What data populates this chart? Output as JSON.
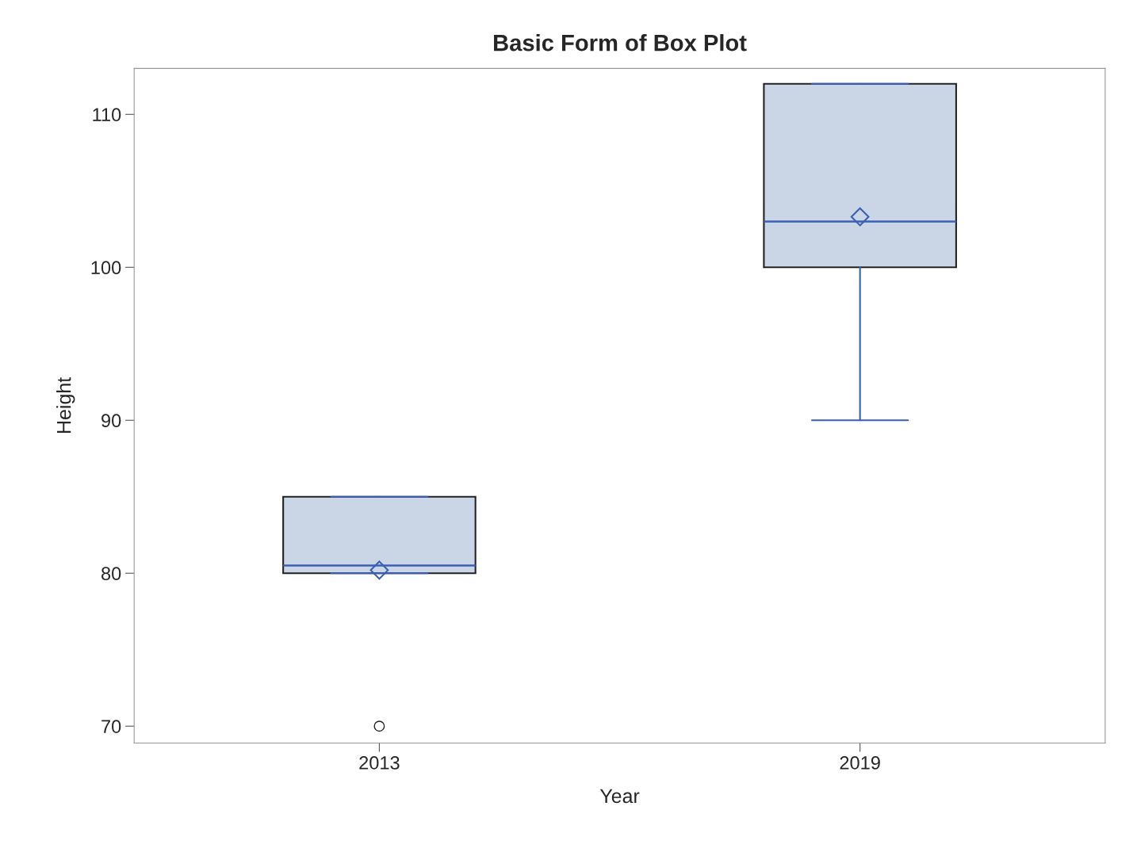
{
  "chart_data": {
    "type": "box",
    "title": "Basic Form of Box Plot",
    "xlabel": "Year",
    "ylabel": "Height",
    "categories": [
      "2013",
      "2019"
    ],
    "boxes": [
      {
        "low": 80,
        "q1": 80,
        "median": 80.5,
        "q3": 85,
        "high": 85,
        "mean": 80.2,
        "outliers": [
          70
        ]
      },
      {
        "low": 90,
        "q1": 100,
        "median": 103,
        "q3": 112,
        "high": 112,
        "mean": 103.3
      }
    ],
    "color": "#cad5e5",
    "ylim": [
      68.9,
      113
    ],
    "yticks": [
      70,
      80,
      90,
      100,
      110
    ],
    "grid": false,
    "legend": false,
    "marker": "diamond"
  }
}
